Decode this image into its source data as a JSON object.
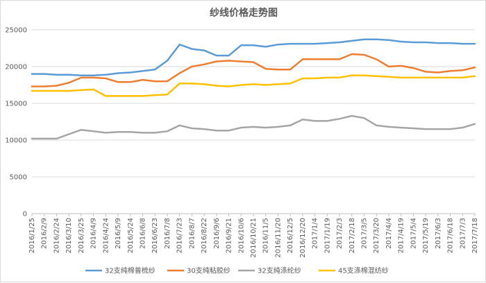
{
  "chart_data": {
    "type": "line",
    "title": "纱线价格走势图",
    "xlabel": "",
    "ylabel": "",
    "ylim": [
      0,
      25000
    ],
    "yticks": [
      0,
      5000,
      10000,
      15000,
      20000,
      25000
    ],
    "grid": true,
    "legend_position": "bottom",
    "categories": [
      "2016/1/25",
      "2016/2/9",
      "2016/2/24",
      "2016/3/10",
      "2016/3/25",
      "2016/4/9",
      "2016/4/24",
      "2016/5/9",
      "2016/5/24",
      "2016/6/8",
      "2016/6/23",
      "2016/7/8",
      "2016/7/23",
      "2016/8/7",
      "2016/8/22",
      "2016/9/6",
      "2016/9/21",
      "2016/10/6",
      "2016/10/21",
      "2016/11/5",
      "2016/11/20",
      "2016/12/5",
      "2016/12/20",
      "2017/1/4",
      "2017/1/19",
      "2017/2/3",
      "2017/2/18",
      "2017/3/5",
      "2017/3/20",
      "2017/4/4",
      "2017/4/19",
      "2017/5/4",
      "2017/5/19",
      "2017/6/3",
      "2017/6/18",
      "2017/7/3",
      "2017/7/18"
    ],
    "series": [
      {
        "name": "32支纯棉普梳纱",
        "color": "#5b9bd5",
        "values": [
          19000,
          19000,
          18900,
          18900,
          18800,
          18800,
          18900,
          19100,
          19200,
          19400,
          19600,
          20800,
          23000,
          22400,
          22200,
          21500,
          21500,
          22900,
          22900,
          22700,
          23000,
          23100,
          23100,
          23100,
          23200,
          23300,
          23500,
          23700,
          23700,
          23600,
          23400,
          23300,
          23300,
          23200,
          23200,
          23100,
          23100
        ]
      },
      {
        "name": "30支纯粘胶纱",
        "color": "#ed7d31",
        "values": [
          17300,
          17300,
          17400,
          17800,
          18500,
          18500,
          18400,
          17900,
          17900,
          18200,
          18000,
          18000,
          19100,
          20000,
          20300,
          20700,
          20800,
          20700,
          20600,
          19700,
          19600,
          19600,
          21000,
          21000,
          21000,
          21000,
          21700,
          21600,
          21000,
          20000,
          20100,
          19800,
          19300,
          19200,
          19400,
          19500,
          19900
        ]
      },
      {
        "name": "32支纯涤纶纱",
        "color": "#a5a5a5",
        "values": [
          10200,
          10200,
          10200,
          10800,
          11400,
          11200,
          11000,
          11100,
          11100,
          11000,
          11000,
          11200,
          12000,
          11600,
          11500,
          11300,
          11300,
          11700,
          11800,
          11700,
          11800,
          12000,
          12800,
          12600,
          12600,
          12900,
          13300,
          13000,
          12000,
          11800,
          11700,
          11600,
          11500,
          11500,
          11500,
          11700,
          12200
        ]
      },
      {
        "name": "45支涤棉混纺纱",
        "color": "#ffc000",
        "values": [
          16700,
          16700,
          16700,
          16700,
          16800,
          16900,
          16000,
          16000,
          16000,
          16000,
          16100,
          16200,
          17700,
          17700,
          17600,
          17400,
          17300,
          17500,
          17600,
          17500,
          17600,
          17700,
          18400,
          18400,
          18500,
          18500,
          18800,
          18800,
          18700,
          18600,
          18500,
          18500,
          18500,
          18500,
          18500,
          18500,
          18700
        ]
      }
    ]
  }
}
